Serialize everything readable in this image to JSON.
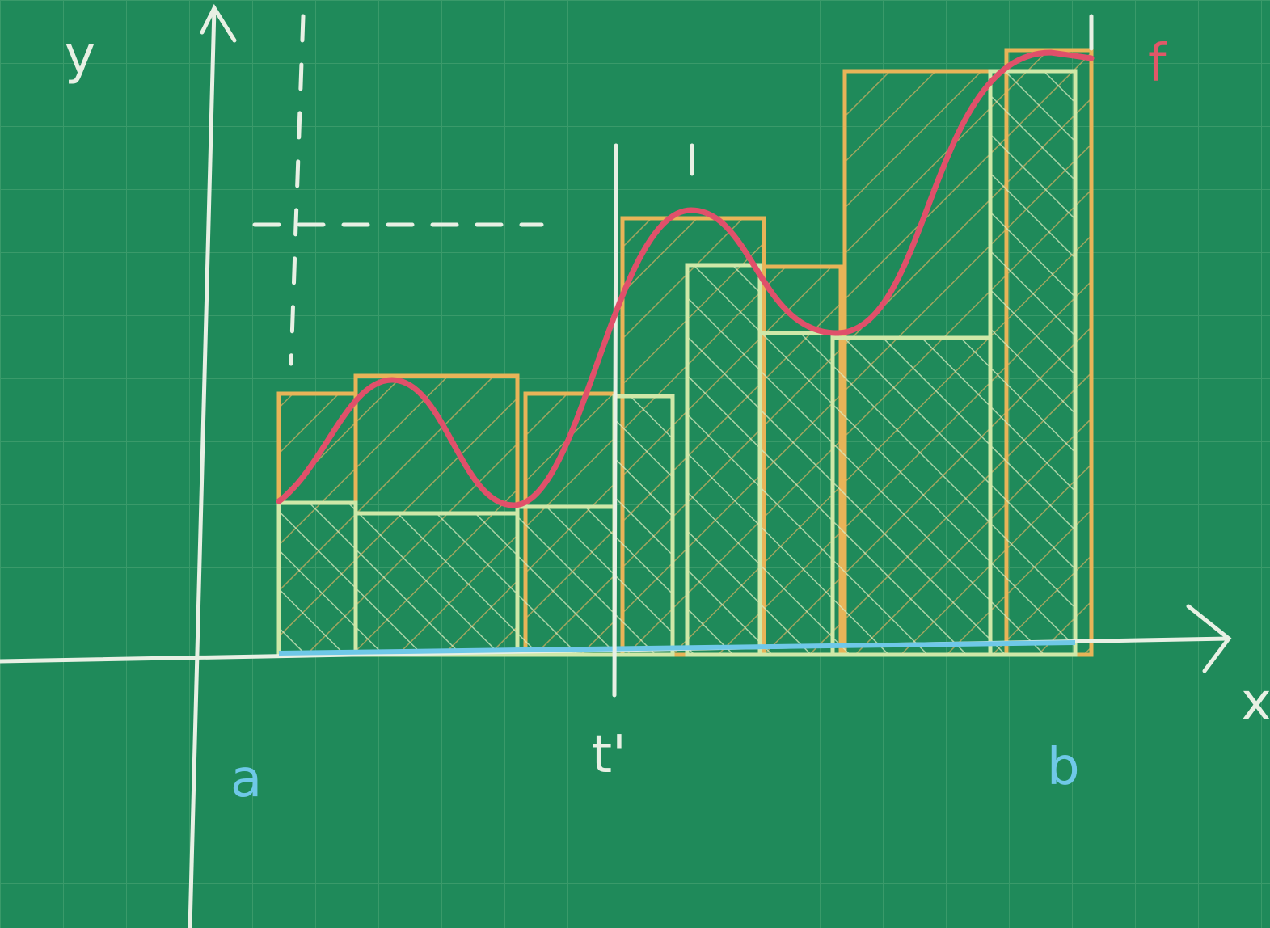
{
  "labels": {
    "y_axis": "y",
    "x_axis": "x",
    "function": "f",
    "left_bound": "a",
    "right_bound": "b",
    "point": "t'"
  }
}
